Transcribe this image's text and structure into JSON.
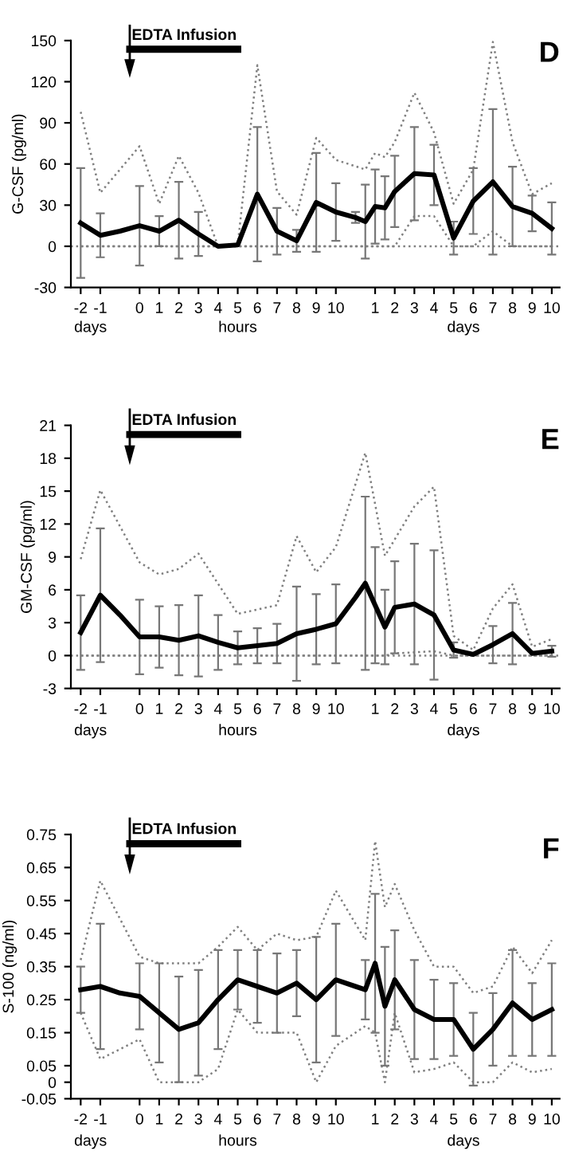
{
  "chart_data": [
    {
      "type": "line",
      "title": "D",
      "ylabel": "G-CSF (pg/ml)",
      "annotations": [
        "EDTA Infusion",
        "days",
        "hours",
        "days"
      ],
      "categories": [
        "-2",
        null,
        "-1",
        null,
        null,
        null,
        "0",
        null,
        "1",
        null,
        "2",
        null,
        "3",
        null,
        "4",
        null,
        "5",
        null,
        "6",
        null,
        "7",
        null,
        "8",
        null,
        "9",
        null,
        "10",
        null,
        null,
        null,
        "1",
        null,
        "2",
        null,
        "3",
        null,
        "4",
        null,
        "5",
        null,
        "6",
        null,
        "7",
        null,
        "8",
        null,
        "9",
        null,
        "10"
      ],
      "ylim": [
        -30,
        150
      ],
      "yticks": [
        -30,
        0,
        30,
        60,
        90,
        120,
        150
      ],
      "ref_lines": [
        {
          "axis": "y",
          "value": 0,
          "color": "#808080",
          "line_style": "dotted"
        }
      ],
      "series": [
        {
          "color": "#808080",
          "line_style": "dotted",
          "values": [
            98,
            null,
            39,
            null,
            null,
            null,
            73,
            null,
            31,
            null,
            66,
            null,
            39,
            null,
            0,
            null,
            1,
            null,
            132,
            null,
            40,
            null,
            23,
            null,
            79,
            null,
            63,
            null,
            null,
            56,
            68,
            65,
            76,
            null,
            112,
            null,
            83,
            null,
            31,
            null,
            56,
            null,
            149,
            null,
            76,
            null,
            38,
            null,
            46
          ]
        },
        {
          "color": "#808080",
          "line_style": "dotted",
          "values": [
            0,
            null,
            null,
            null,
            null,
            null,
            null,
            null,
            null,
            null,
            null,
            null,
            null,
            null,
            null,
            null,
            null,
            null,
            null,
            null,
            null,
            null,
            null,
            null,
            null,
            null,
            null,
            null,
            null,
            null,
            null,
            null,
            0,
            null,
            22,
            null,
            22,
            null,
            0,
            null,
            0,
            null,
            11,
            null,
            0,
            null,
            null,
            null,
            0
          ]
        },
        {
          "color": "#000000",
          "line_style": "solid",
          "values": [
            17,
            null,
            8,
            null,
            11,
            null,
            15,
            null,
            11,
            null,
            19,
            null,
            9,
            null,
            0,
            null,
            1,
            null,
            38,
            null,
            11,
            null,
            4,
            null,
            32,
            null,
            25,
            null,
            21,
            18,
            29,
            28,
            40,
            null,
            53,
            null,
            52,
            null,
            6,
            null,
            33,
            null,
            47,
            null,
            29,
            null,
            24,
            null,
            13
          ],
          "errors": [
            40,
            null,
            16,
            null,
            null,
            null,
            29,
            null,
            11,
            null,
            28,
            null,
            16,
            null,
            null,
            null,
            null,
            null,
            49,
            null,
            17,
            null,
            8,
            null,
            36,
            null,
            21,
            null,
            4,
            27,
            27,
            23,
            26,
            null,
            34,
            null,
            22,
            null,
            12,
            null,
            24,
            null,
            53,
            null,
            29,
            null,
            13,
            null,
            19
          ]
        }
      ]
    },
    {
      "type": "line",
      "title": "E",
      "ylabel": "GM-CSF (pg/ml)",
      "annotations": [
        "EDTA Infusion",
        "days",
        "hours",
        "days"
      ],
      "categories": [
        "-2",
        null,
        "-1",
        null,
        null,
        null,
        "0",
        null,
        "1",
        null,
        "2",
        null,
        "3",
        null,
        "4",
        null,
        "5",
        null,
        "6",
        null,
        "7",
        null,
        "8",
        null,
        "9",
        null,
        "10",
        null,
        null,
        null,
        "1",
        null,
        "2",
        null,
        "3",
        null,
        "4",
        null,
        "5",
        null,
        "6",
        null,
        "7",
        null,
        "8",
        null,
        "9",
        null,
        "10"
      ],
      "ylim": [
        -3,
        21
      ],
      "yticks": [
        -3,
        0,
        3,
        6,
        9,
        12,
        15,
        18,
        21
      ],
      "ref_lines": [
        {
          "axis": "y",
          "value": 0,
          "color": "#808080",
          "line_style": "dotted"
        }
      ],
      "series": [
        {
          "color": "#808080",
          "line_style": "dotted",
          "values": [
            8.8,
            null,
            15.1,
            null,
            null,
            null,
            8.5,
            null,
            7.4,
            null,
            7.9,
            null,
            9.3,
            null,
            null,
            null,
            3.8,
            null,
            null,
            null,
            4.6,
            null,
            10.9,
            null,
            7.6,
            null,
            9.9,
            null,
            null,
            18.5,
            null,
            9.1,
            null,
            null,
            13.6,
            null,
            15.4,
            null,
            1.8,
            null,
            0.5,
            null,
            4.3,
            null,
            6.5,
            null,
            0.8,
            null,
            1.5
          ]
        },
        {
          "color": "#808080",
          "line_style": "dotted",
          "values": [
            0,
            null,
            null,
            null,
            null,
            null,
            null,
            null,
            null,
            null,
            null,
            null,
            null,
            null,
            null,
            null,
            null,
            null,
            null,
            null,
            null,
            null,
            null,
            null,
            null,
            null,
            null,
            null,
            null,
            null,
            null,
            0,
            0.2,
            null,
            0.3,
            null,
            0.4,
            null,
            0,
            null,
            0,
            null,
            null,
            null,
            null,
            null,
            null,
            null,
            0
          ]
        },
        {
          "color": "#000000",
          "line_style": "solid",
          "values": [
            2.1,
            null,
            5.5,
            null,
            3.7,
            null,
            1.7,
            null,
            1.7,
            null,
            1.4,
            null,
            1.8,
            null,
            1.2,
            null,
            0.7,
            null,
            0.9,
            null,
            1.1,
            null,
            2.0,
            null,
            2.4,
            null,
            2.9,
            null,
            5.3,
            6.6,
            4.6,
            2.6,
            4.4,
            null,
            4.7,
            null,
            3.7,
            null,
            0.5,
            null,
            0.1,
            null,
            1.0,
            null,
            2.0,
            null,
            0.2,
            null,
            0.4
          ],
          "errors": [
            3.4,
            null,
            6.1,
            null,
            null,
            null,
            3.4,
            null,
            2.8,
            null,
            3.2,
            null,
            3.7,
            null,
            2.5,
            null,
            1.5,
            null,
            1.6,
            null,
            1.8,
            null,
            4.3,
            null,
            3.2,
            null,
            3.6,
            null,
            null,
            7.9,
            5.3,
            3.4,
            4.2,
            null,
            5.5,
            null,
            5.9,
            null,
            0.7,
            null,
            null,
            null,
            1.7,
            null,
            2.8,
            null,
            null,
            null,
            0.5
          ]
        }
      ]
    },
    {
      "type": "line",
      "title": "F",
      "ylabel": "S-100 (ng/ml)",
      "annotations": [
        "EDTA Infusion",
        "days",
        "hours",
        "days"
      ],
      "categories": [
        "-2",
        null,
        "-1",
        null,
        null,
        null,
        "0",
        null,
        "1",
        null,
        "2",
        null,
        "3",
        null,
        "4",
        null,
        "5",
        null,
        "6",
        null,
        "7",
        null,
        "8",
        null,
        "9",
        null,
        "10",
        null,
        null,
        null,
        "1",
        null,
        "2",
        null,
        "3",
        null,
        "4",
        null,
        "5",
        null,
        "6",
        null,
        "7",
        null,
        "8",
        null,
        "9",
        null,
        "10"
      ],
      "ylim": [
        -0.05,
        0.75
      ],
      "yticks": [
        -0.05,
        0,
        0.05,
        0.15,
        0.25,
        0.35,
        0.45,
        0.55,
        0.65,
        0.75
      ],
      "series": [
        {
          "color": "#808080",
          "line_style": "dotted",
          "values": [
            0.37,
            null,
            0.61,
            null,
            null,
            null,
            0.38,
            null,
            0.36,
            null,
            0.36,
            null,
            0.36,
            null,
            0.41,
            null,
            0.47,
            null,
            0.4,
            null,
            0.45,
            null,
            0.43,
            null,
            0.44,
            null,
            0.58,
            null,
            null,
            0.43,
            0.73,
            0.53,
            0.6,
            null,
            0.46,
            null,
            0.35,
            null,
            0.35,
            null,
            0.27,
            null,
            0.29,
            null,
            0.41,
            null,
            0.33,
            null,
            0.43
          ]
        },
        {
          "color": "#808080",
          "line_style": "dotted",
          "values": [
            0.21,
            null,
            0.07,
            null,
            null,
            null,
            0.13,
            null,
            0,
            null,
            0,
            null,
            0,
            null,
            0.04,
            null,
            0.22,
            null,
            0.15,
            null,
            0.15,
            null,
            0.15,
            null,
            0,
            null,
            0.11,
            null,
            null,
            0.17,
            0.15,
            0,
            0.21,
            null,
            0.03,
            null,
            0.04,
            null,
            0.06,
            null,
            0,
            null,
            0,
            null,
            0.06,
            null,
            0.03,
            null,
            0.04
          ]
        },
        {
          "color": "#000000",
          "line_style": "solid",
          "values": [
            0.28,
            null,
            0.29,
            null,
            0.27,
            null,
            0.26,
            null,
            0.21,
            null,
            0.16,
            null,
            0.18,
            null,
            0.25,
            null,
            0.31,
            null,
            0.29,
            null,
            0.27,
            null,
            0.3,
            null,
            0.25,
            null,
            0.31,
            null,
            0.29,
            0.28,
            0.36,
            0.23,
            0.31,
            null,
            0.22,
            null,
            0.19,
            null,
            0.19,
            null,
            0.1,
            null,
            0.16,
            null,
            0.24,
            null,
            0.19,
            null,
            0.22
          ],
          "errors": [
            0.07,
            null,
            0.19,
            null,
            null,
            null,
            0.1,
            null,
            0.15,
            null,
            0.16,
            null,
            0.16,
            null,
            0.15,
            null,
            0.09,
            null,
            0.11,
            null,
            0.12,
            null,
            0.1,
            null,
            0.19,
            null,
            0.17,
            null,
            null,
            0.09,
            0.21,
            0.18,
            0.15,
            null,
            0.15,
            null,
            0.12,
            null,
            0.11,
            null,
            0.11,
            null,
            0.11,
            null,
            0.16,
            null,
            0.11,
            null,
            0.14
          ]
        }
      ]
    }
  ]
}
